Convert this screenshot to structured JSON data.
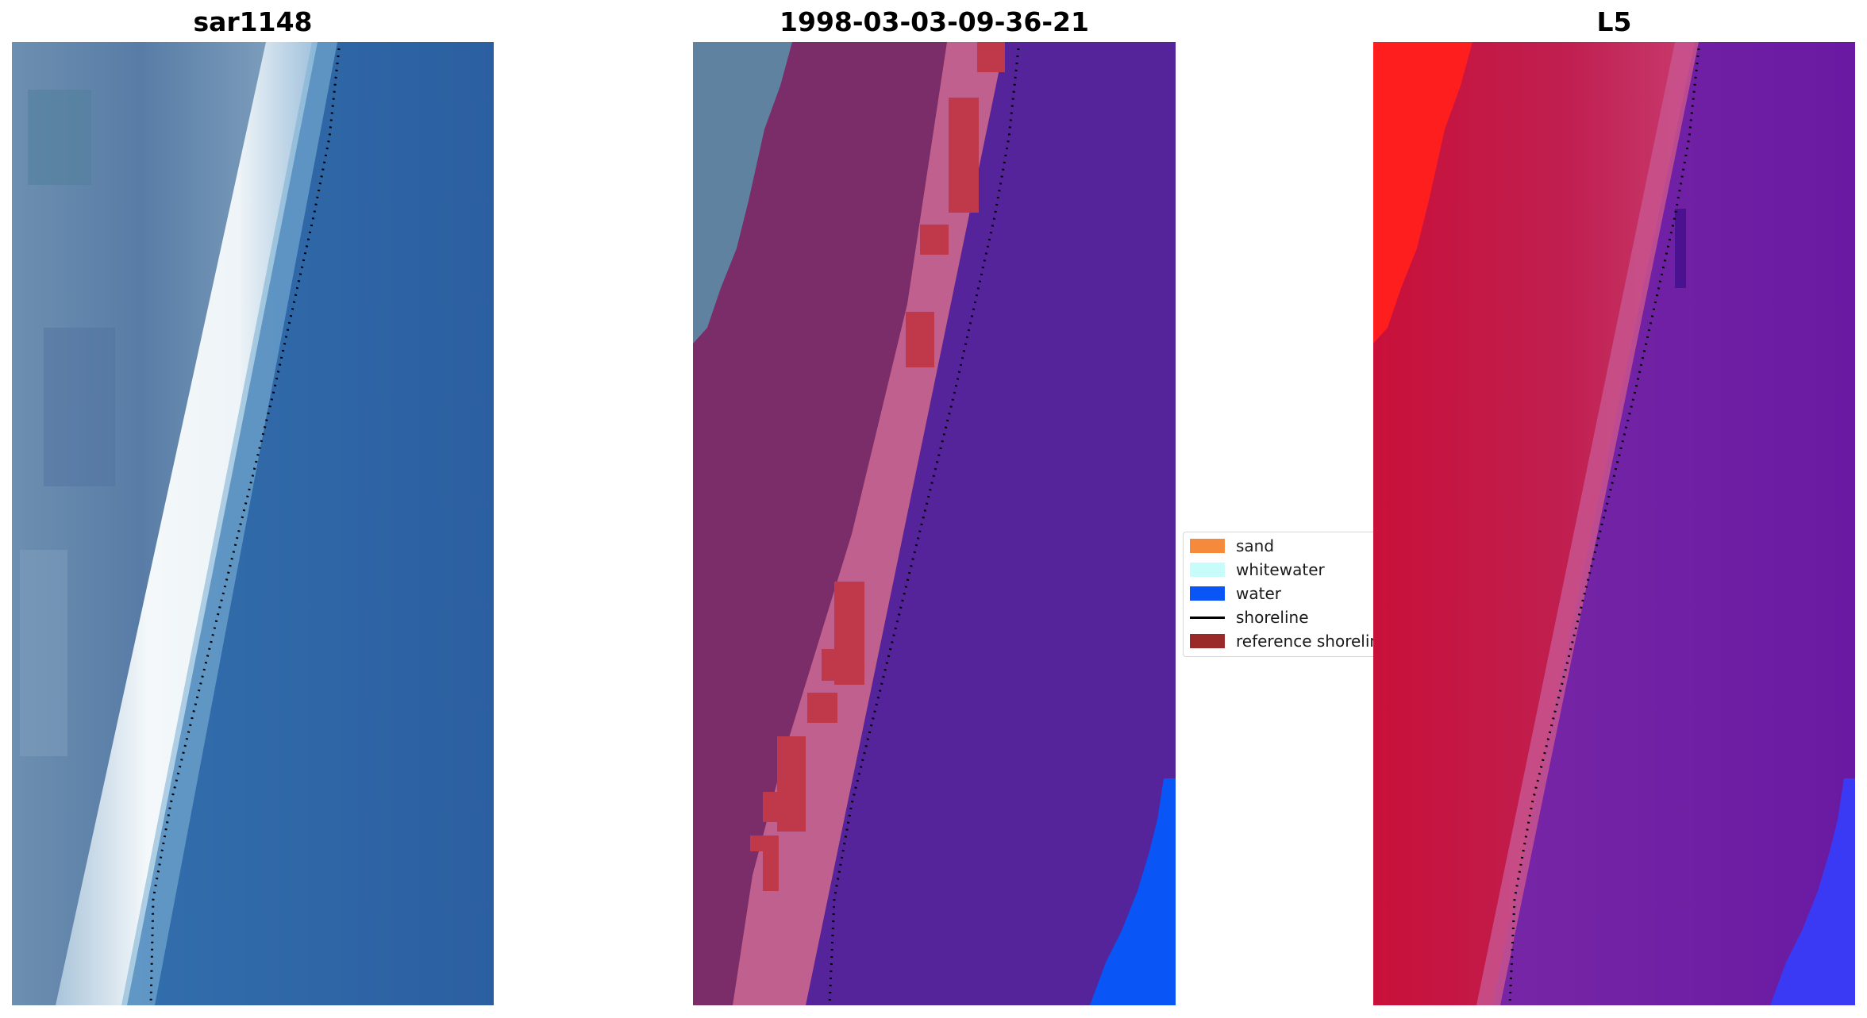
{
  "panels": [
    {
      "title": "sar1148"
    },
    {
      "title": "1998-03-03-09-36-21"
    },
    {
      "title": "L5"
    }
  ],
  "legend": {
    "items": [
      {
        "label": "sand",
        "color": "#f58a3c",
        "kind": "patch"
      },
      {
        "label": "whitewater",
        "color": "#c8fcfa",
        "kind": "patch"
      },
      {
        "label": "water",
        "color": "#0a55f5",
        "kind": "patch"
      },
      {
        "label": "shoreline",
        "color": "#000000",
        "kind": "line"
      },
      {
        "label": "reference shoreline",
        "color": "#9a2a2a",
        "kind": "patch"
      }
    ]
  },
  "colors": {
    "rgb_land": "#5f82a8",
    "rgb_whitewater": "#eef4f8",
    "rgb_water": "#2d64a4",
    "class_land": "#7a2d68",
    "class_beach": "#c0608e",
    "class_ref_shoreline": "#c0394a",
    "class_water": "#55239a",
    "class_water_blue": "#0a55f5",
    "mndwi_high": "#c2123e",
    "mndwi_low": "#6a1aa2",
    "mndwi_red": "#ff1e1e",
    "mndwi_blue": "#3a3af5"
  }
}
